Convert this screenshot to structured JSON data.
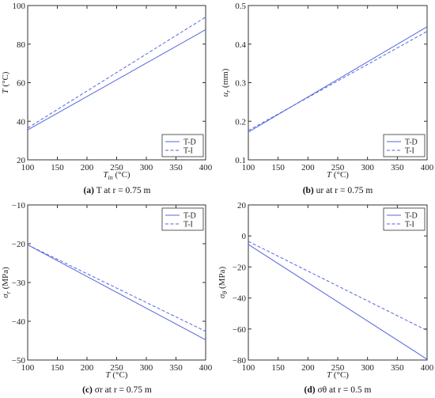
{
  "chart_data": [
    {
      "type": "line",
      "panel": "a",
      "caption": {
        "label": "(a)",
        "rest": " T at r = 0.75 m"
      },
      "xlabel": {
        "main": "T",
        "sub": "in",
        "unit": " (°C)"
      },
      "ylabel": {
        "main": "T",
        "sub": "",
        "unit": " (°C)"
      },
      "xlim": [
        100,
        400
      ],
      "ylim": [
        20,
        100
      ],
      "xticks": [
        100,
        150,
        200,
        250,
        300,
        350,
        400
      ],
      "yticks": [
        20,
        40,
        60,
        80,
        100
      ],
      "legend_position": "bottom-right",
      "series": [
        {
          "name": "T-D",
          "style": "solid",
          "x": [
            100,
            400
          ],
          "y": [
            35.5,
            87.5
          ]
        },
        {
          "name": "T-I",
          "style": "dashed",
          "x": [
            100,
            400
          ],
          "y": [
            36.5,
            94
          ]
        }
      ]
    },
    {
      "type": "line",
      "panel": "b",
      "caption": {
        "label": "(b)",
        "rest": " ur at r = 0.75 m"
      },
      "xlabel": {
        "main": "T",
        "sub": "",
        "unit": " (°C)"
      },
      "ylabel": {
        "main": "u",
        "sub": "r",
        "unit": " (mm)"
      },
      "xlim": [
        100,
        400
      ],
      "ylim": [
        0.1,
        0.5
      ],
      "xticks": [
        100,
        150,
        200,
        250,
        300,
        350,
        400
      ],
      "yticks": [
        0.1,
        0.2,
        0.3,
        0.4,
        0.5
      ],
      "legend_position": "bottom-right",
      "series": [
        {
          "name": "T-D",
          "style": "solid",
          "x": [
            100,
            400
          ],
          "y": [
            0.172,
            0.445
          ]
        },
        {
          "name": "T-I",
          "style": "dashed",
          "x": [
            100,
            400
          ],
          "y": [
            0.176,
            0.433
          ]
        }
      ]
    },
    {
      "type": "line",
      "panel": "c",
      "caption": {
        "label": "(c)",
        "rest": " σr at r = 0.75 m"
      },
      "xlabel": {
        "main": "T",
        "sub": "",
        "unit": " (°C)"
      },
      "ylabel": {
        "main": "σ",
        "sub": "r",
        "unit": " (MPa)"
      },
      "xlim": [
        100,
        400
      ],
      "ylim": [
        -50,
        -10
      ],
      "xticks": [
        100,
        150,
        200,
        250,
        300,
        350,
        400
      ],
      "yticks": [
        -50,
        -40,
        -30,
        -20,
        -10
      ],
      "legend_position": "top-right",
      "series": [
        {
          "name": "T-D",
          "style": "solid",
          "x": [
            100,
            400
          ],
          "y": [
            -20.3,
            -44.8
          ]
        },
        {
          "name": "T-I",
          "style": "dashed",
          "x": [
            100,
            400
          ],
          "y": [
            -20.3,
            -42.6
          ]
        }
      ]
    },
    {
      "type": "line",
      "panel": "d",
      "caption": {
        "label": "(d)",
        "rest": " σθ at r = 0.5 m"
      },
      "xlabel": {
        "main": "T",
        "sub": "",
        "unit": " (°C)"
      },
      "ylabel": {
        "main": "σ",
        "sub": "θ",
        "unit": " (MPa)"
      },
      "xlim": [
        100,
        400
      ],
      "ylim": [
        -80,
        20
      ],
      "xticks": [
        100,
        150,
        200,
        250,
        300,
        350,
        400
      ],
      "yticks": [
        -80,
        -60,
        -40,
        -20,
        0,
        20
      ],
      "legend_position": "top-right",
      "series": [
        {
          "name": "T-D",
          "style": "solid",
          "x": [
            100,
            400
          ],
          "y": [
            -5.5,
            -79.5
          ]
        },
        {
          "name": "T-I",
          "style": "dashed",
          "x": [
            100,
            400
          ],
          "y": [
            -3.5,
            -61
          ]
        }
      ]
    }
  ],
  "colors": {
    "line": "#5566dd",
    "axis": "#333333"
  }
}
